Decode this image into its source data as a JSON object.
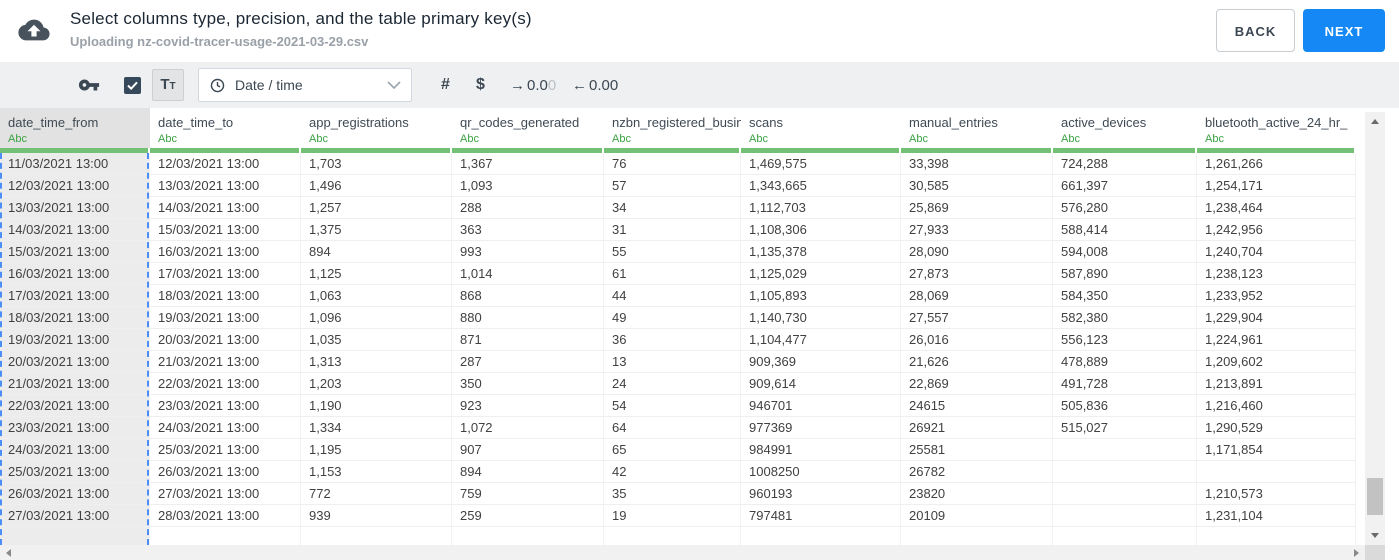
{
  "header": {
    "upload_icon": "cloud-upload-icon",
    "title": "Select columns type, precision, and the table primary key(s)",
    "subtitle": "Uploading nz-covid-tracer-usage-2021-03-29.csv",
    "back_label": "BACK",
    "next_label": "NEXT"
  },
  "toolbar": {
    "key_icon": "primary-key-icon",
    "checkbox_checked": true,
    "text_type_large": "T",
    "text_type_small": "T",
    "type_dropdown": {
      "icon": "clock-icon",
      "value": "Date / time"
    },
    "number_label": "#",
    "currency_label": "$",
    "decimal_increase": {
      "arrow": "→",
      "value": "0.0",
      "faded_digit": "0"
    },
    "decimal_decrease": {
      "arrow": "←",
      "value": "0.00"
    }
  },
  "table": {
    "type_label": "Abc",
    "columns": [
      {
        "name": "date_time_from",
        "selected": true
      },
      {
        "name": "date_time_to",
        "selected": false
      },
      {
        "name": "app_registrations",
        "selected": false
      },
      {
        "name": "qr_codes_generated",
        "selected": false
      },
      {
        "name": "nzbn_registered_busine",
        "selected": false
      },
      {
        "name": "scans",
        "selected": false
      },
      {
        "name": "manual_entries",
        "selected": false
      },
      {
        "name": "active_devices",
        "selected": false
      },
      {
        "name": "bluetooth_active_24_hr_",
        "selected": false
      }
    ],
    "rows": [
      [
        "11/03/2021 13:00",
        "12/03/2021 13:00",
        "1,703",
        "1,367",
        "76",
        "1,469,575",
        "33,398",
        "724,288",
        "1,261,266"
      ],
      [
        "12/03/2021 13:00",
        "13/03/2021 13:00",
        "1,496",
        "1,093",
        "57",
        "1,343,665",
        "30,585",
        "661,397",
        "1,254,171"
      ],
      [
        "13/03/2021 13:00",
        "14/03/2021 13:00",
        "1,257",
        "288",
        "34",
        "1,112,703",
        "25,869",
        "576,280",
        "1,238,464"
      ],
      [
        "14/03/2021 13:00",
        "15/03/2021 13:00",
        "1,375",
        "363",
        "31",
        "1,108,306",
        "27,933",
        "588,414",
        "1,242,956"
      ],
      [
        "15/03/2021 13:00",
        "16/03/2021 13:00",
        "894",
        "993",
        "55",
        "1,135,378",
        "28,090",
        "594,008",
        "1,240,704"
      ],
      [
        "16/03/2021 13:00",
        "17/03/2021 13:00",
        "1,125",
        "1,014",
        "61",
        "1,125,029",
        "27,873",
        "587,890",
        "1,238,123"
      ],
      [
        "17/03/2021 13:00",
        "18/03/2021 13:00",
        "1,063",
        "868",
        "44",
        "1,105,893",
        "28,069",
        "584,350",
        "1,233,952"
      ],
      [
        "18/03/2021 13:00",
        "19/03/2021 13:00",
        "1,096",
        "880",
        "49",
        "1,140,730",
        "27,557",
        "582,380",
        "1,229,904"
      ],
      [
        "19/03/2021 13:00",
        "20/03/2021 13:00",
        "1,035",
        "871",
        "36",
        "1,104,477",
        "26,016",
        "556,123",
        "1,224,961"
      ],
      [
        "20/03/2021 13:00",
        "21/03/2021 13:00",
        "1,313",
        "287",
        "13",
        "909,369",
        "21,626",
        "478,889",
        "1,209,602"
      ],
      [
        "21/03/2021 13:00",
        "22/03/2021 13:00",
        "1,203",
        "350",
        "24",
        "909,614",
        "22,869",
        "491,728",
        "1,213,891"
      ],
      [
        "22/03/2021 13:00",
        "23/03/2021 13:00",
        "1,190",
        "923",
        "54",
        "946701",
        "24615",
        "505,836",
        "1,216,460"
      ],
      [
        "23/03/2021 13:00",
        "24/03/2021 13:00",
        "1,334",
        "1,072",
        "64",
        "977369",
        "26921",
        "515,027",
        "1,290,529"
      ],
      [
        "24/03/2021 13:00",
        "25/03/2021 13:00",
        "1,195",
        "907",
        "65",
        "984991",
        "25581",
        "",
        "1,171,854"
      ],
      [
        "25/03/2021 13:00",
        "26/03/2021 13:00",
        "1,153",
        "894",
        "42",
        "1008250",
        "26782",
        "",
        ""
      ],
      [
        "26/03/2021 13:00",
        "27/03/2021 13:00",
        "772",
        "759",
        "35",
        "960193",
        "23820",
        "",
        "1,210,573"
      ],
      [
        "27/03/2021 13:00",
        "28/03/2021 13:00",
        "939",
        "259",
        "19",
        "797481",
        "20109",
        "",
        "1,231,104"
      ]
    ]
  },
  "colors": {
    "accent_blue": "#1588f5",
    "accept_green": "#74c176",
    "type_label_green": "#3ba243",
    "selection_dash_blue": "#4d8df6",
    "toolbar_gray": "#eff0f1",
    "dark_slate": "#3b4752"
  }
}
